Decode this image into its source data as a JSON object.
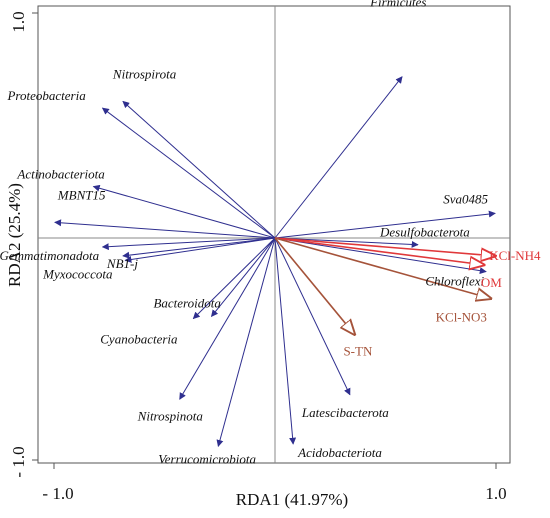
{
  "chart_data": {
    "type": "scatter",
    "title": "",
    "xlabel": "RDA1 (41.97%)",
    "ylabel": "RDA2 (25.4%)",
    "xlim": [
      -1.05,
      1.05
    ],
    "ylim": [
      -1.02,
      1.02
    ],
    "xtick_labels": [
      "- 1.0",
      "1.0"
    ],
    "ytick_labels": [
      "1.0",
      "- 1.0"
    ],
    "colors": {
      "species": "#2f2f8f",
      "env_red": "#e0383a",
      "env_brown": "#a5533a",
      "axis": "#888888"
    },
    "species_vectors": [
      {
        "name": "Firmicutes",
        "x": 0.56,
        "y": 0.72
      },
      {
        "name": "Nitrospirota",
        "x": -0.67,
        "y": 0.61
      },
      {
        "name": "Proteobacteria",
        "x": -0.76,
        "y": 0.58
      },
      {
        "name": "Actinobacteriota",
        "x": -0.8,
        "y": 0.23
      },
      {
        "name": "MBNT15",
        "x": -0.97,
        "y": 0.07
      },
      {
        "name": "Sva0485",
        "x": 0.97,
        "y": 0.11
      },
      {
        "name": "Desulfobacterota",
        "x": 0.63,
        "y": -0.03
      },
      {
        "name": "Chloroflexi",
        "x": 0.93,
        "y": -0.15
      },
      {
        "name": "Gemmatimonadota",
        "x": -0.76,
        "y": -0.04
      },
      {
        "name": "NB1-j",
        "x": -0.67,
        "y": -0.08
      },
      {
        "name": "Myxococcota",
        "x": -0.66,
        "y": -0.1
      },
      {
        "name": "Bacteroidota",
        "x": -0.28,
        "y": -0.35
      },
      {
        "name": "Cyanobacteria",
        "x": -0.36,
        "y": -0.36
      },
      {
        "name": "Nitrospinota",
        "x": -0.42,
        "y": -0.72
      },
      {
        "name": "Verrucomicrobiota",
        "x": -0.25,
        "y": -0.93
      },
      {
        "name": "Latescibacterota",
        "x": 0.33,
        "y": -0.7
      },
      {
        "name": "Acidobacteriota",
        "x": 0.08,
        "y": -0.92
      }
    ],
    "env_vectors": [
      {
        "name": "KCl-NH4",
        "x": 0.97,
        "y": -0.08,
        "color": "red"
      },
      {
        "name": "OM",
        "x": 0.92,
        "y": -0.12,
        "color": "red"
      },
      {
        "name": "KCl-NO3",
        "x": 0.95,
        "y": -0.27,
        "color": "brown"
      },
      {
        "name": "S-TN",
        "x": 0.35,
        "y": -0.43,
        "color": "brown"
      }
    ]
  }
}
